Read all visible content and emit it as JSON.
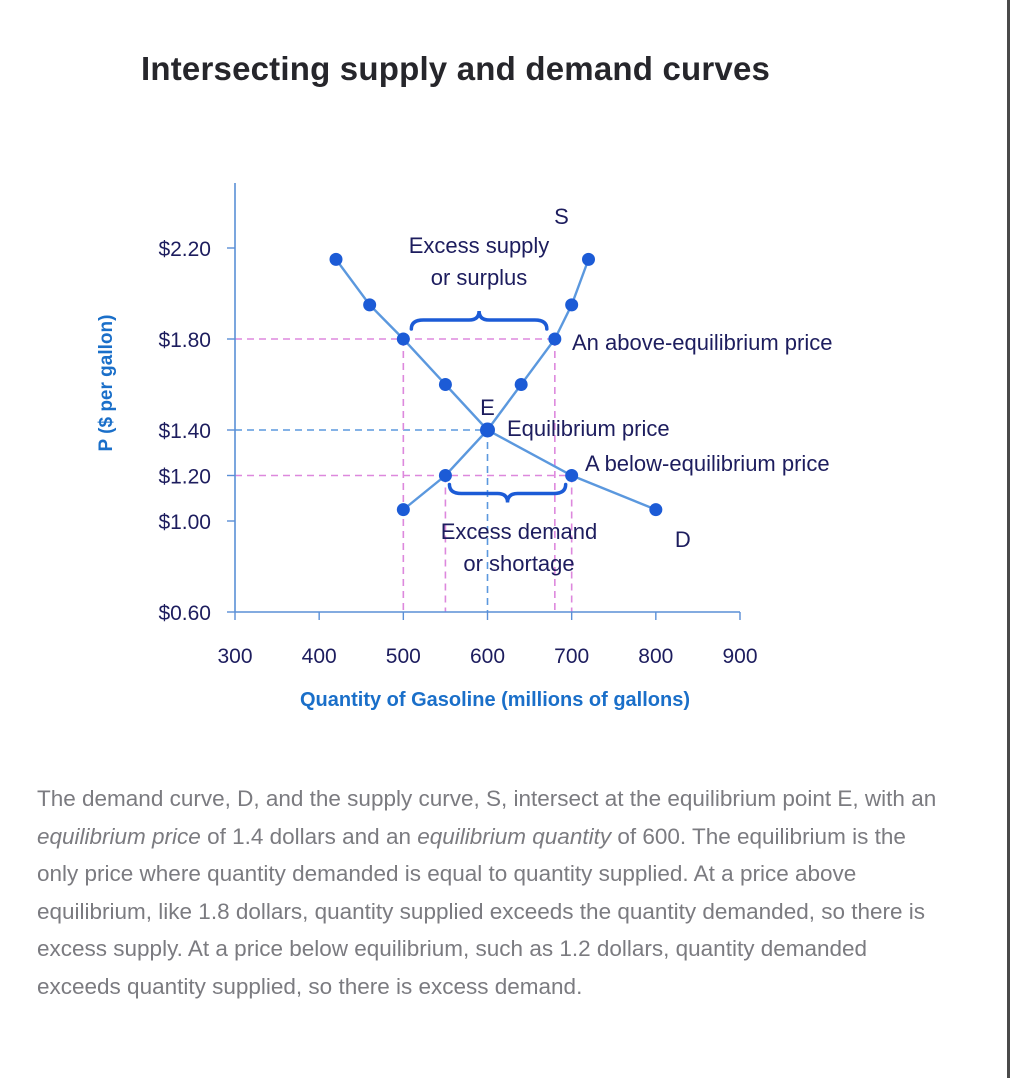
{
  "title": "Intersecting supply and demand curves",
  "colors": {
    "curve": "#5b98de",
    "point": "#1c5bd6",
    "axis": "#5a8fd6",
    "guide": "#dd88dd",
    "guide_equilibrium": "#5b98de",
    "axis_title": "#1a6fc9",
    "text": "#1d1d5e"
  },
  "chart_data": {
    "type": "line",
    "xlabel": "Quantity of Gasoline (millions of gallons)",
    "ylabel": "P ($ per gallon)",
    "xlim": [
      300,
      900
    ],
    "ylim": [
      0.6,
      2.2
    ],
    "x_ticks": [
      "300",
      "400",
      "500",
      "600",
      "700",
      "800",
      "900"
    ],
    "y_ticks": [
      {
        "value": 2.2,
        "label": "$2.20"
      },
      {
        "value": 1.8,
        "label": "$1.80"
      },
      {
        "value": 1.4,
        "label": "$1.40"
      },
      {
        "value": 1.2,
        "label": "$1.20"
      },
      {
        "value": 1.0,
        "label": "$1.00"
      },
      {
        "value": 0.6,
        "label": "$0.60"
      }
    ],
    "series": [
      {
        "name": "D",
        "points": [
          [
            420,
            2.15
          ],
          [
            460,
            1.95
          ],
          [
            500,
            1.8
          ],
          [
            550,
            1.6
          ],
          [
            600,
            1.4
          ],
          [
            700,
            1.2
          ],
          [
            800,
            1.05
          ]
        ]
      },
      {
        "name": "S",
        "points": [
          [
            500,
            1.05
          ],
          [
            550,
            1.2
          ],
          [
            600,
            1.4
          ],
          [
            640,
            1.6
          ],
          [
            680,
            1.8
          ],
          [
            700,
            1.95
          ],
          [
            720,
            2.15
          ]
        ]
      }
    ],
    "equilibrium": {
      "label": "E",
      "x": 600,
      "y": 1.4
    },
    "annotations": {
      "surplus": [
        "Excess supply",
        "or surplus"
      ],
      "above_price": "An above-equilibrium price",
      "equilibrium_price": "Equilibrium price",
      "below_price": "A below-equilibrium price",
      "shortage": [
        "Excess demand",
        "or shortage"
      ]
    }
  },
  "caption": {
    "p1": "The demand curve, D, and the supply curve, S, intersect at the equilibrium point E, with an ",
    "em1": "equilibrium price",
    "p2": " of 1.4 dollars and an ",
    "em2": "equilibrium quantity",
    "p3": " of 600. The equilibrium is the only price where quantity demanded is equal to quantity supplied. At a price above equilibrium, like 1.8 dollars, quantity supplied exceeds the quantity demanded, so there is excess supply. At a price below equilibrium, such as 1.2 dollars, quantity demanded exceeds quantity supplied, so there is excess demand."
  }
}
